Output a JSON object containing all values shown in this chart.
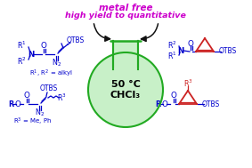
{
  "background_color": "#ffffff",
  "title_line1": "metal free",
  "title_line2": "high yield to quantitative",
  "title_color": "#cc00cc",
  "flask_color": "#22aa22",
  "flask_fill": "#e0f8e0",
  "flask_liquid": "#c8f0c8",
  "flask_text1": "50 °C",
  "flask_text2": "CHCl₃",
  "flask_text_color": "#000000",
  "blue_color": "#0000cc",
  "red_color": "#cc2222",
  "black": "#111111",
  "purple": "#cc00cc",
  "figsize": [
    2.83,
    1.89
  ],
  "dpi": 100
}
